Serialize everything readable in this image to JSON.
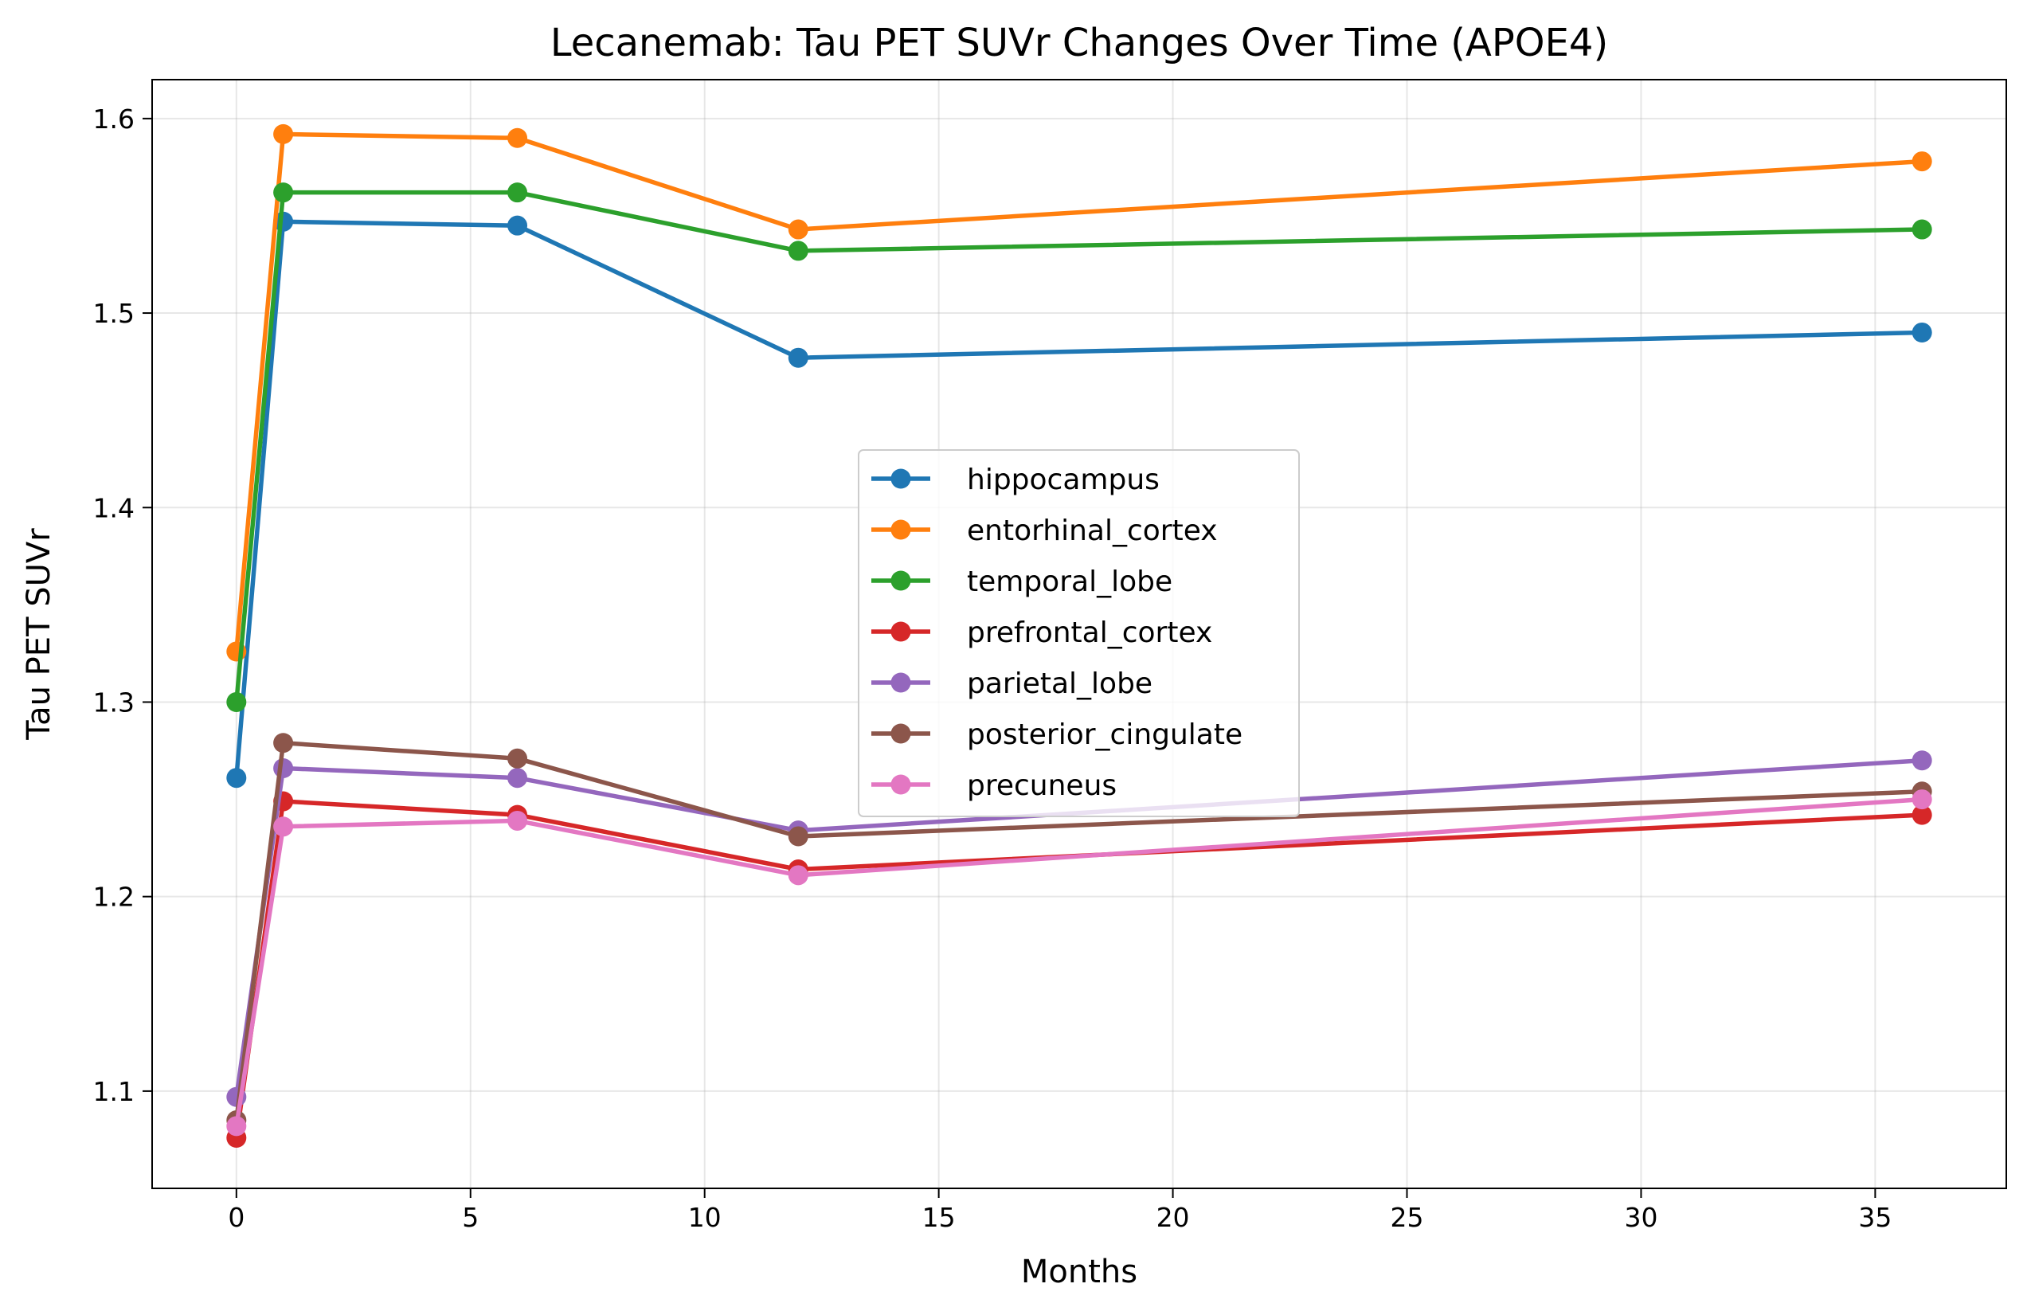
{
  "chart_data": {
    "type": "line",
    "title": "Lecanemab: Tau PET SUVr Changes Over Time (APOE4)",
    "xlabel": "Months",
    "ylabel": "Tau PET SUVr",
    "xlim": [
      -1.8,
      37.8
    ],
    "ylim": [
      1.05,
      1.62
    ],
    "xticks": [
      0,
      5,
      10,
      15,
      20,
      25,
      30,
      35
    ],
    "yticks": [
      1.1,
      1.2,
      1.3,
      1.4,
      1.5,
      1.6
    ],
    "ytick_labels": [
      "1.1",
      "1.2",
      "1.3",
      "1.4",
      "1.5",
      "1.6"
    ],
    "grid": true,
    "legend_position": "center",
    "x": [
      0,
      1,
      6,
      12,
      36
    ],
    "series": [
      {
        "name": "hippocampus",
        "color": "#1f77b4",
        "values": [
          1.261,
          1.547,
          1.545,
          1.477,
          1.49
        ]
      },
      {
        "name": "entorhinal_cortex",
        "color": "#ff7f0e",
        "values": [
          1.326,
          1.592,
          1.59,
          1.543,
          1.578
        ]
      },
      {
        "name": "temporal_lobe",
        "color": "#2ca02c",
        "values": [
          1.3,
          1.562,
          1.562,
          1.532,
          1.543
        ]
      },
      {
        "name": "prefrontal_cortex",
        "color": "#d62728",
        "values": [
          1.076,
          1.249,
          1.242,
          1.214,
          1.242
        ]
      },
      {
        "name": "parietal_lobe",
        "color": "#9467bd",
        "values": [
          1.097,
          1.266,
          1.261,
          1.234,
          1.27
        ]
      },
      {
        "name": "posterior_cingulate",
        "color": "#8c564b",
        "values": [
          1.085,
          1.279,
          1.271,
          1.231,
          1.254
        ]
      },
      {
        "name": "precuneus",
        "color": "#e377c2",
        "values": [
          1.082,
          1.236,
          1.239,
          1.211,
          1.25
        ]
      }
    ]
  }
}
